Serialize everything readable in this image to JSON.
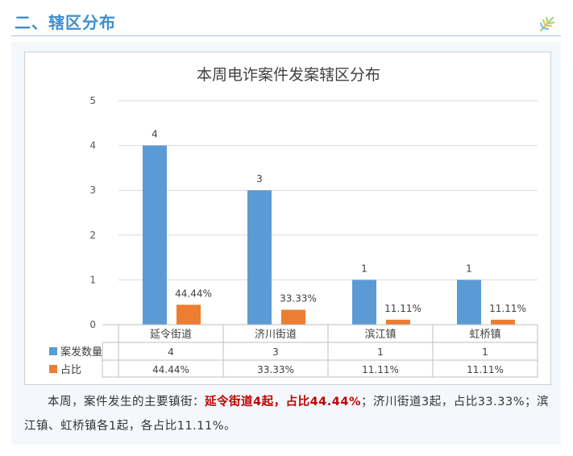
{
  "section": {
    "title": "二、辖区分布"
  },
  "colors": {
    "accent": "#3e8ed0",
    "bar_count": "#5b9bd5",
    "bar_ratio": "#ed7d31",
    "highlight": "#c00000"
  },
  "chart_data": {
    "type": "bar",
    "title": "本周电诈案件发案辖区分布",
    "categories": [
      "延令街道",
      "济川街道",
      "滨江镇",
      "虹桥镇"
    ],
    "series": [
      {
        "name": "案发数量",
        "values": [
          4,
          3,
          1,
          1
        ],
        "labels": [
          "4",
          "3",
          "1",
          "1"
        ]
      },
      {
        "name": "占比",
        "values": [
          0.4444,
          0.3333,
          0.1111,
          0.1111
        ],
        "labels": [
          "44.44%",
          "33.33%",
          "11.11%",
          "11.11%"
        ]
      }
    ],
    "ylim": [
      0,
      5
    ],
    "yticks": [
      "0",
      "1",
      "2",
      "3",
      "4",
      "5"
    ],
    "grid": true,
    "data_table": true
  },
  "caption": {
    "lead": "本周，案件发生的主要镇街：",
    "highlight": "延令街道4起，占比44.44%",
    "sep": "；",
    "rest": "济川街道3起，占比33.33%；滨江镇、虹桥镇各1起，各占比11.11%。"
  }
}
